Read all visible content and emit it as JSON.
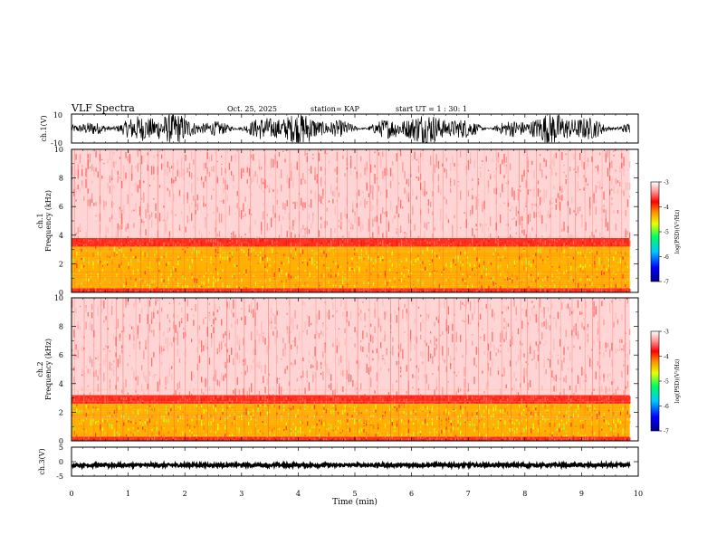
{
  "header": {
    "title": "VLF Spectra",
    "date": "Oct. 25, 2025",
    "station": "station= KAP",
    "start": "start  UT =   1 : 30: 1"
  },
  "chart_data": [
    {
      "type": "line",
      "name": "ch1-waveform",
      "ylabel": "ch.1(V)",
      "ylim": [
        -10,
        10
      ],
      "ytick_labels": [
        "10",
        "-10"
      ]
    },
    {
      "type": "heatmap",
      "name": "ch1-spectrogram",
      "ylabel_line1": "ch.1",
      "ylabel_line2": "Frequency (kHz)",
      "ylim": [
        0,
        10
      ],
      "yticks": [
        0,
        2,
        4,
        6,
        8,
        10
      ],
      "ytick_labels": [
        "0",
        "2",
        "4",
        "6",
        "8",
        "10"
      ],
      "bands": [
        {
          "from": 0,
          "to": 0.3,
          "level": "red"
        },
        {
          "from": 0.3,
          "to": 3.2,
          "level": "yellow"
        },
        {
          "from": 3.2,
          "to": 3.8,
          "level": "red"
        },
        {
          "from": 3.8,
          "to": 10,
          "level": "light-red"
        }
      ],
      "colorbar": {
        "label": "log(PSD)(V²/Hz)",
        "range": [
          -7,
          -3
        ],
        "tick_labels": [
          "-3",
          "-4",
          "-5",
          "-6",
          "-7"
        ]
      }
    },
    {
      "type": "heatmap",
      "name": "ch2-spectrogram",
      "ylabel_line1": "ch.2",
      "ylabel_line2": "Frequency (kHz)",
      "ylim": [
        0,
        10
      ],
      "yticks": [
        0,
        2,
        4,
        6,
        8,
        10
      ],
      "ytick_labels": [
        "0",
        "2",
        "4",
        "6",
        "8",
        "10"
      ],
      "bands": [
        {
          "from": 0,
          "to": 0.3,
          "level": "red"
        },
        {
          "from": 0.3,
          "to": 2.6,
          "level": "yellow"
        },
        {
          "from": 2.6,
          "to": 3.2,
          "level": "red"
        },
        {
          "from": 3.2,
          "to": 10,
          "level": "light-red"
        }
      ],
      "colorbar": {
        "label": "log(PSD)(V²/Hz)",
        "range": [
          -7,
          -3
        ],
        "tick_labels": [
          "-3",
          "-4",
          "-5",
          "-6",
          "-7"
        ]
      }
    },
    {
      "type": "line",
      "name": "ch3-waveform",
      "ylabel": "ch.3(V)",
      "ylim": [
        -5,
        5
      ],
      "yticks": [
        5,
        0,
        -5
      ],
      "ytick_labels": [
        "5",
        "0",
        "-5"
      ],
      "signal_level": -1.2
    }
  ],
  "xaxis": {
    "label": "Time (min)",
    "xlim": [
      0,
      10
    ],
    "ticks": [
      0,
      1,
      2,
      3,
      4,
      5,
      6,
      7,
      8,
      9,
      10
    ],
    "tick_labels": [
      "0",
      "1",
      "2",
      "3",
      "4",
      "5",
      "6",
      "7",
      "8",
      "9",
      "10"
    ],
    "data_end": 9.85
  }
}
